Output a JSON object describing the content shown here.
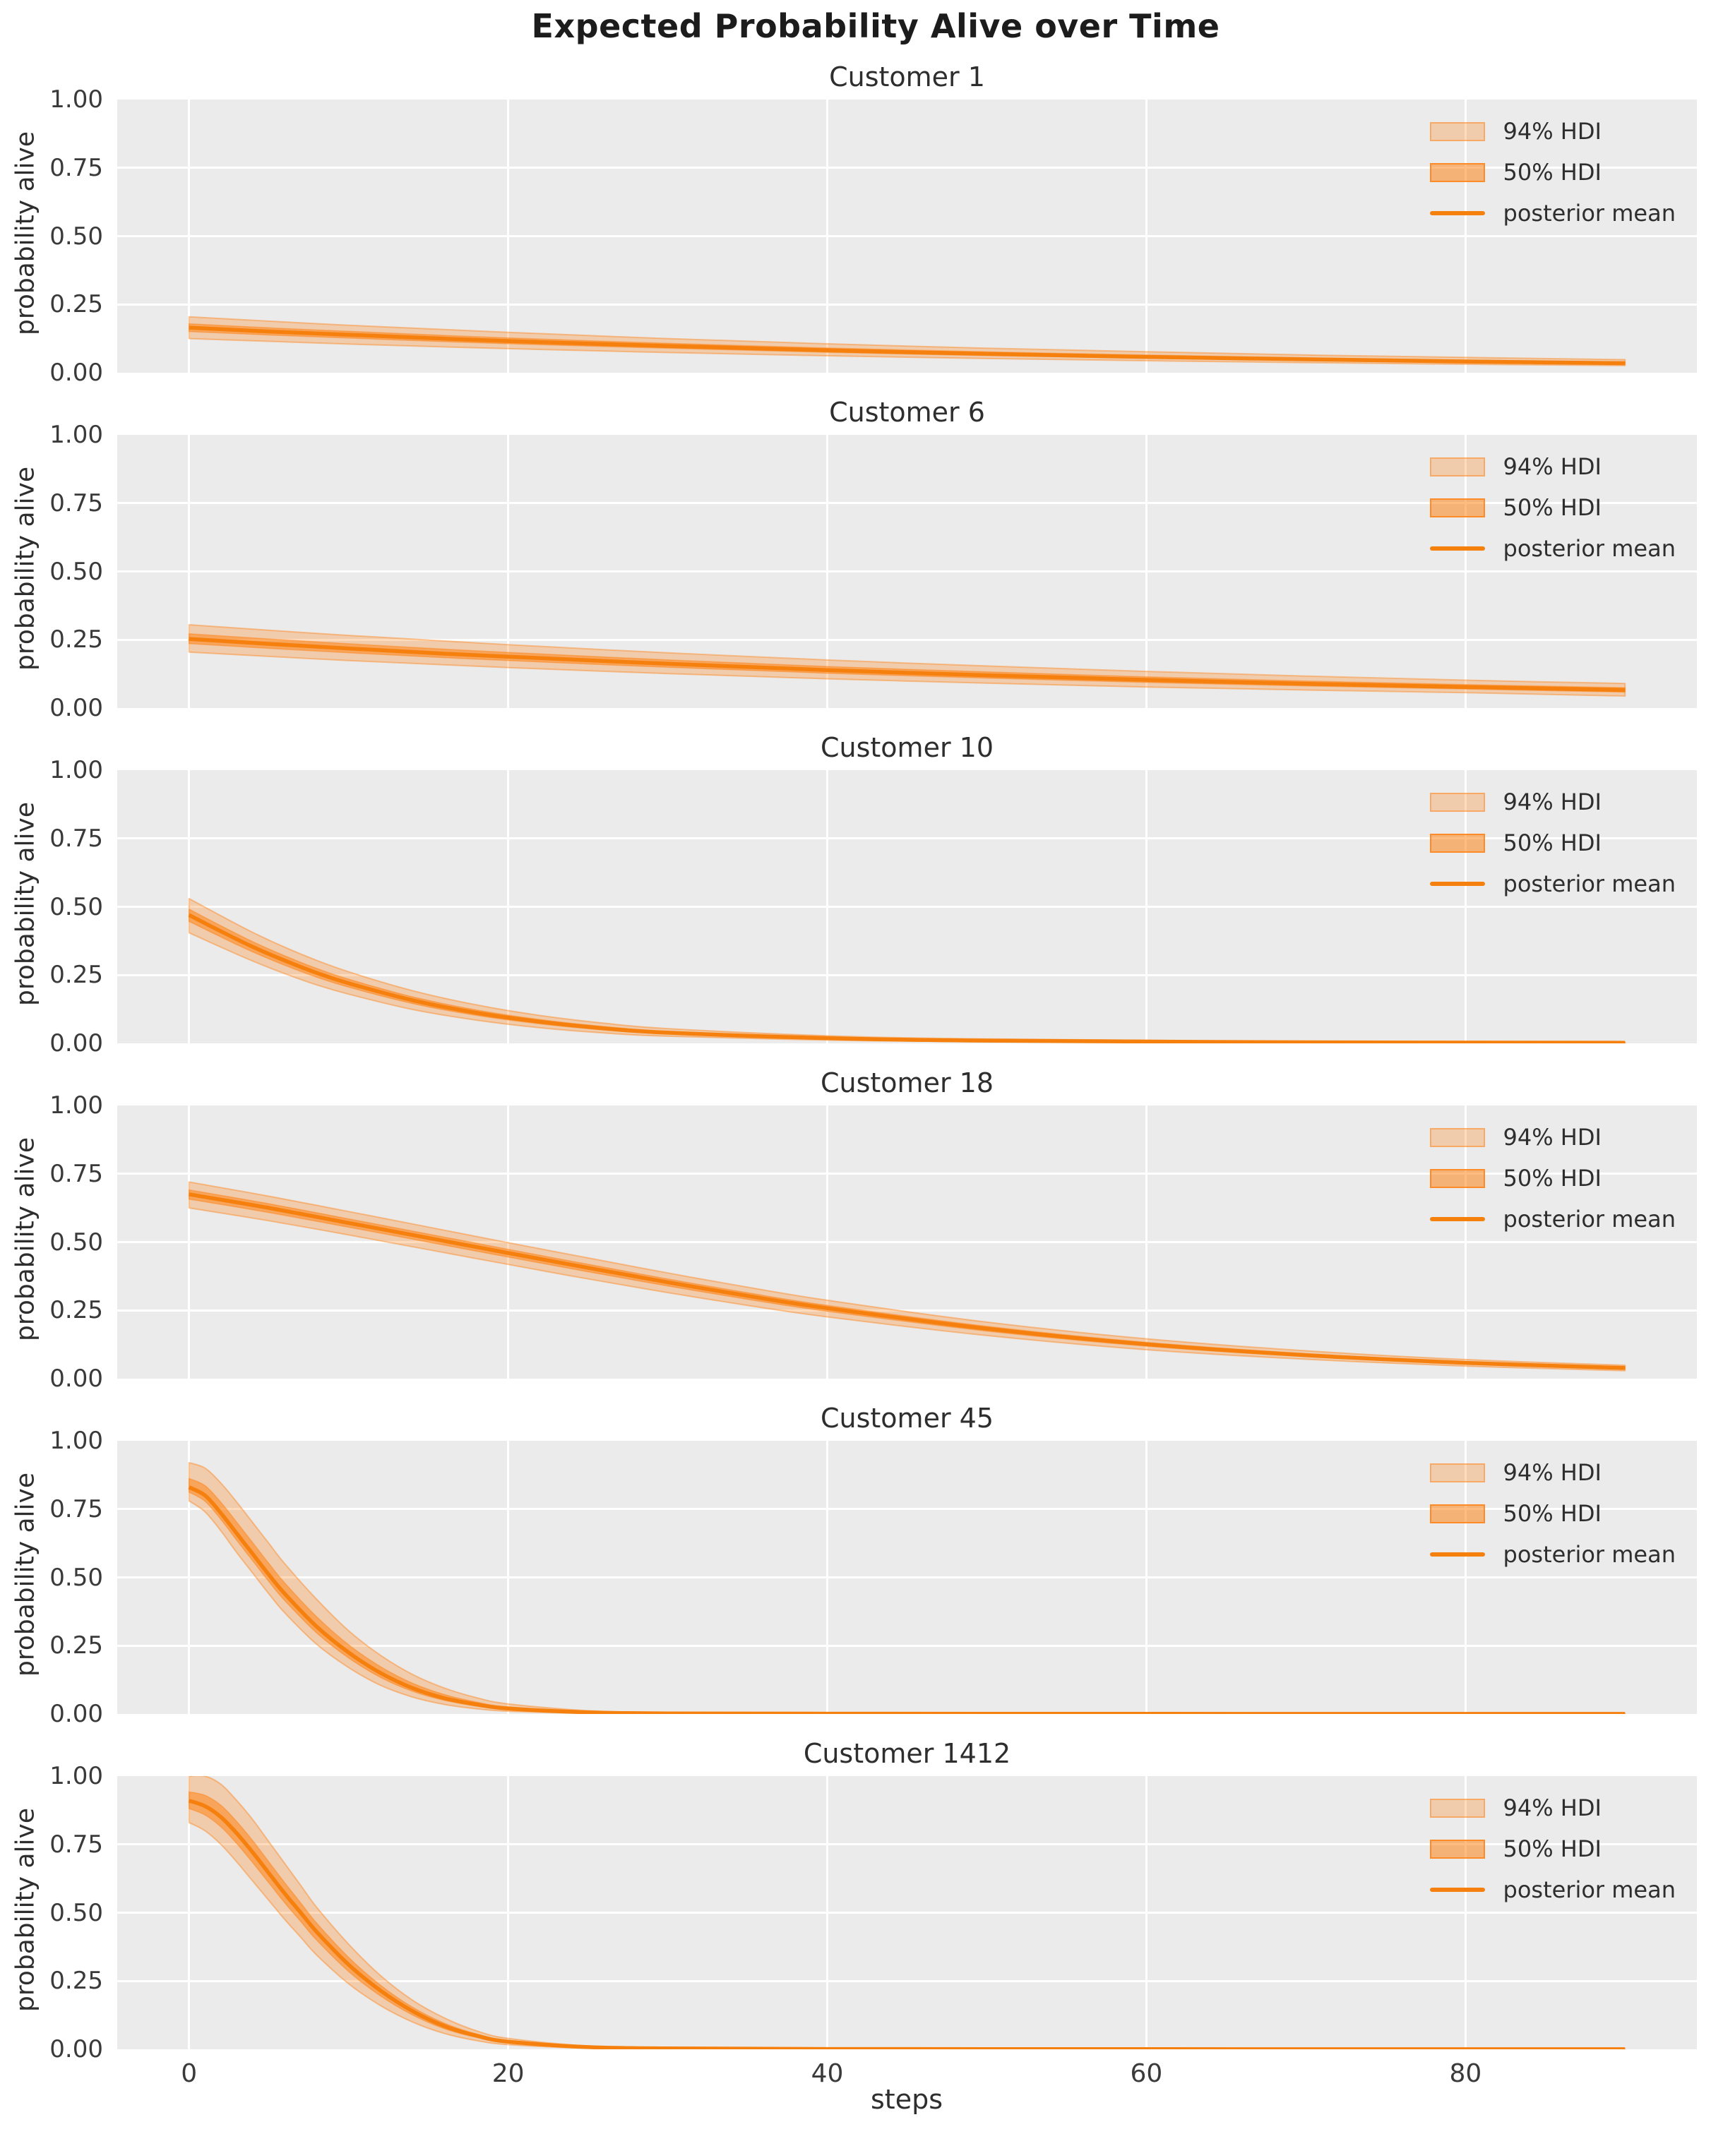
{
  "figure": {
    "title": "Expected Probability Alive over Time",
    "xlabel": "steps",
    "ylabel": "probability alive"
  },
  "legend": {
    "items": [
      {
        "label": "94% HDI",
        "kind": "patch-light"
      },
      {
        "label": "50% HDI",
        "kind": "patch-dark"
      },
      {
        "label": "posterior mean",
        "kind": "line"
      }
    ]
  },
  "colors": {
    "accent_orange": "#f5800e",
    "band_rgb": "255,127,14",
    "band94_alpha": 0.28,
    "band50_alpha": 0.52,
    "band_edge_alpha": 0.42,
    "axes_background": "#ebebeb",
    "gridline": "#ffffff",
    "text_dark": "#2e2e2e"
  },
  "axis": {
    "yticks": [
      "1.00",
      "0.75",
      "0.50",
      "0.25",
      "0.00"
    ],
    "ytick_values": [
      1.0,
      0.75,
      0.5,
      0.25,
      0.0
    ],
    "xticks": [
      "0",
      "20",
      "40",
      "60",
      "80"
    ],
    "xtick_values": [
      0,
      20,
      40,
      60,
      80
    ]
  },
  "chart_data": {
    "type": "line",
    "title": "Expected Probability Alive over Time",
    "xlabel": "steps",
    "ylabel": "probability alive",
    "xlim": [
      -4.5,
      94.5
    ],
    "ylim": [
      0,
      1
    ],
    "grid": true,
    "legend_position": "upper right",
    "hdi50_width_ratio": 0.36,
    "series": [
      {
        "name": "Customer 1",
        "t": [
          0,
          5,
          10,
          15,
          20,
          30,
          40,
          50,
          60,
          70,
          80,
          90
        ],
        "mean": [
          0.165,
          0.151,
          0.139,
          0.127,
          0.116,
          0.098,
          0.082,
          0.069,
          0.058,
          0.049,
          0.041,
          0.035
        ],
        "hdi94_upper": [
          0.205,
          0.189,
          0.174,
          0.161,
          0.148,
          0.125,
          0.106,
          0.09,
          0.077,
          0.065,
          0.056,
          0.048
        ],
        "hdi94_lower": [
          0.125,
          0.115,
          0.105,
          0.096,
          0.088,
          0.074,
          0.062,
          0.052,
          0.044,
          0.037,
          0.031,
          0.026
        ]
      },
      {
        "name": "Customer 6",
        "t": [
          0,
          5,
          10,
          15,
          20,
          30,
          40,
          50,
          60,
          70,
          80,
          90
        ],
        "mean": [
          0.253,
          0.235,
          0.218,
          0.202,
          0.188,
          0.162,
          0.139,
          0.12,
          0.103,
          0.089,
          0.077,
          0.066
        ],
        "hdi94_upper": [
          0.305,
          0.285,
          0.266,
          0.249,
          0.232,
          0.202,
          0.176,
          0.154,
          0.134,
          0.117,
          0.102,
          0.09
        ],
        "hdi94_lower": [
          0.205,
          0.189,
          0.174,
          0.161,
          0.148,
          0.126,
          0.107,
          0.091,
          0.077,
          0.066,
          0.056,
          0.044
        ]
      },
      {
        "name": "Customer 10",
        "t": [
          0,
          2,
          4,
          6,
          8,
          10,
          14,
          18,
          22,
          26,
          30,
          40,
          50,
          70,
          90
        ],
        "mean": [
          0.47,
          0.41,
          0.353,
          0.303,
          0.258,
          0.22,
          0.158,
          0.112,
          0.079,
          0.055,
          0.039,
          0.019,
          0.01,
          0.004,
          0.002
        ],
        "hdi94_upper": [
          0.53,
          0.467,
          0.406,
          0.352,
          0.304,
          0.262,
          0.193,
          0.141,
          0.102,
          0.074,
          0.054,
          0.028,
          0.016,
          0.007,
          0.004
        ],
        "hdi94_lower": [
          0.405,
          0.352,
          0.301,
          0.255,
          0.214,
          0.18,
          0.124,
          0.085,
          0.057,
          0.038,
          0.026,
          0.012,
          0.006,
          0.002,
          0.001
        ]
      },
      {
        "name": "Customer 18",
        "t": [
          0,
          5,
          10,
          15,
          20,
          25,
          30,
          35,
          40,
          50,
          60,
          70,
          80,
          90
        ],
        "mean": [
          0.675,
          0.625,
          0.57,
          0.515,
          0.46,
          0.406,
          0.353,
          0.303,
          0.258,
          0.183,
          0.126,
          0.086,
          0.058,
          0.039
        ],
        "hdi94_upper": [
          0.72,
          0.668,
          0.612,
          0.555,
          0.498,
          0.442,
          0.387,
          0.335,
          0.287,
          0.207,
          0.146,
          0.102,
          0.07,
          0.049
        ],
        "hdi94_lower": [
          0.625,
          0.578,
          0.526,
          0.472,
          0.418,
          0.365,
          0.315,
          0.268,
          0.226,
          0.158,
          0.106,
          0.071,
          0.046,
          0.029
        ]
      },
      {
        "name": "Customer 45",
        "t": [
          0,
          1,
          2,
          3,
          4,
          5,
          6,
          8,
          10,
          12,
          14,
          16,
          18,
          20,
          25,
          30,
          40,
          60,
          90
        ],
        "mean": [
          0.83,
          0.8,
          0.735,
          0.66,
          0.585,
          0.51,
          0.44,
          0.32,
          0.225,
          0.15,
          0.095,
          0.058,
          0.035,
          0.02,
          0.006,
          0.002,
          0.001,
          0.0005,
          0.0003
        ],
        "hdi94_upper": [
          0.92,
          0.9,
          0.845,
          0.775,
          0.7,
          0.625,
          0.55,
          0.42,
          0.305,
          0.215,
          0.145,
          0.095,
          0.06,
          0.037,
          0.012,
          0.005,
          0.002,
          0.001,
          0.0006
        ],
        "hdi94_lower": [
          0.78,
          0.74,
          0.67,
          0.59,
          0.515,
          0.44,
          0.37,
          0.255,
          0.17,
          0.105,
          0.062,
          0.035,
          0.019,
          0.01,
          0.003,
          0.001,
          0.0004,
          0.0002,
          0.0001
        ]
      },
      {
        "name": "Customer 1412",
        "t": [
          0,
          1,
          2,
          3,
          4,
          5,
          6,
          7,
          8,
          10,
          12,
          14,
          16,
          18,
          20,
          25,
          30,
          40,
          60,
          90
        ],
        "mean": [
          0.91,
          0.89,
          0.85,
          0.79,
          0.72,
          0.645,
          0.57,
          0.5,
          0.43,
          0.31,
          0.215,
          0.14,
          0.085,
          0.05,
          0.028,
          0.008,
          0.003,
          0.001,
          0.0005,
          0.0003
        ],
        "hdi94_upper": [
          1.0,
          1.0,
          0.97,
          0.91,
          0.84,
          0.76,
          0.68,
          0.6,
          0.52,
          0.385,
          0.27,
          0.18,
          0.115,
          0.068,
          0.04,
          0.012,
          0.005,
          0.002,
          0.001,
          0.0006
        ],
        "hdi94_lower": [
          0.83,
          0.8,
          0.75,
          0.685,
          0.615,
          0.545,
          0.475,
          0.41,
          0.345,
          0.24,
          0.16,
          0.1,
          0.058,
          0.032,
          0.017,
          0.004,
          0.0015,
          0.0005,
          0.0002,
          0.0001
        ]
      }
    ]
  }
}
